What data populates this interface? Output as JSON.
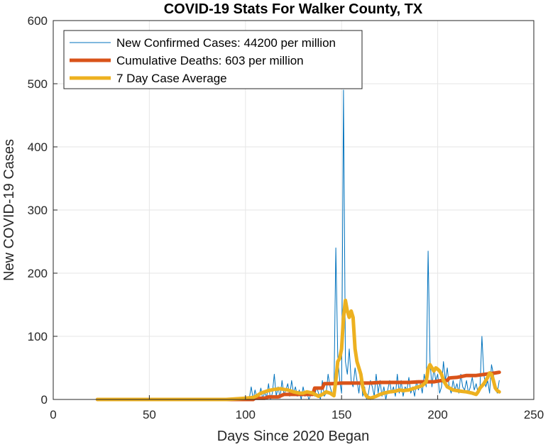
{
  "chart_data": {
    "type": "line",
    "title": "COVID-19 Stats For Walker County, TX",
    "xlabel": "Days Since 2020 Began",
    "ylabel": "New COVID-19 Cases",
    "xlim": [
      0,
      250
    ],
    "ylim": [
      0,
      600
    ],
    "xticks": [
      0,
      50,
      100,
      150,
      200,
      250
    ],
    "yticks": [
      0,
      100,
      200,
      300,
      400,
      500,
      600
    ],
    "grid": true,
    "legend_position": "top-left",
    "colors": {
      "new_cases": "#0072BD",
      "deaths": "#D95319",
      "average": "#EDB120",
      "grid": "#e6e6e6",
      "axis": "#262626"
    },
    "series": [
      {
        "name": "New Confirmed Cases: 44200 per million",
        "key": "new_cases",
        "width": 1,
        "x": [
          23,
          60,
          90,
          95,
          100,
          102,
          103,
          104,
          105,
          106,
          107,
          108,
          109,
          110,
          111,
          112,
          113,
          114,
          115,
          116,
          117,
          118,
          119,
          120,
          121,
          122,
          123,
          124,
          125,
          126,
          127,
          128,
          129,
          130,
          131,
          132,
          133,
          134,
          135,
          136,
          137,
          138,
          139,
          140,
          141,
          142,
          143,
          144,
          145,
          146,
          147,
          148,
          149,
          150,
          151,
          152,
          153,
          154,
          155,
          156,
          157,
          158,
          159,
          160,
          161,
          162,
          163,
          164,
          165,
          166,
          167,
          168,
          169,
          170,
          171,
          172,
          173,
          174,
          175,
          176,
          177,
          178,
          179,
          180,
          181,
          182,
          183,
          184,
          185,
          186,
          187,
          188,
          189,
          190,
          191,
          192,
          193,
          194,
          195,
          196,
          197,
          198,
          199,
          200,
          201,
          202,
          203,
          204,
          205,
          206,
          207,
          208,
          209,
          210,
          211,
          212,
          213,
          214,
          215,
          216,
          217,
          218,
          219,
          220,
          221,
          222,
          223,
          224,
          225,
          226,
          227,
          228,
          229,
          230,
          231,
          232
        ],
        "values": [
          0,
          0,
          0,
          0,
          0,
          2,
          20,
          0,
          15,
          2,
          5,
          18,
          0,
          12,
          3,
          25,
          0,
          10,
          40,
          5,
          20,
          2,
          30,
          8,
          15,
          25,
          5,
          30,
          10,
          20,
          5,
          15,
          0,
          20,
          5,
          10,
          0,
          8,
          15,
          5,
          20,
          10,
          0,
          30,
          5,
          10,
          40,
          20,
          10,
          5,
          240,
          70,
          30,
          10,
          490,
          60,
          40,
          80,
          30,
          20,
          50,
          30,
          10,
          40,
          5,
          20,
          0,
          10,
          30,
          20,
          5,
          40,
          10,
          30,
          5,
          20,
          0,
          15,
          30,
          10,
          20,
          5,
          40,
          10,
          30,
          5,
          20,
          15,
          35,
          10,
          20,
          5,
          30,
          15,
          25,
          10,
          40,
          20,
          235,
          60,
          20,
          50,
          30,
          40,
          10,
          20,
          60,
          30,
          50,
          20,
          10,
          30,
          15,
          25,
          10,
          40,
          20,
          15,
          30,
          10,
          20,
          35,
          15,
          25,
          10,
          20,
          100,
          40,
          20,
          30,
          10,
          55,
          40,
          20,
          10,
          30
        ],
        "style": "thin"
      },
      {
        "name": "Cumulative Deaths: 603 per million",
        "key": "deaths",
        "width": 5,
        "x": [
          23,
          104,
          105,
          110,
          112,
          117,
          120,
          125,
          135,
          136,
          140,
          141,
          145,
          150,
          155,
          160,
          165,
          170,
          180,
          185,
          190,
          195,
          198,
          200,
          202,
          205,
          206,
          210,
          215,
          220,
          225,
          230,
          232
        ],
        "values": [
          0,
          0,
          2,
          2,
          4,
          4,
          8,
          8,
          8,
          18,
          18,
          25,
          25,
          26,
          26,
          26,
          26,
          27,
          27,
          27,
          28,
          28,
          28,
          29,
          30,
          30,
          34,
          35,
          38,
          38,
          40,
          42,
          43
        ]
      },
      {
        "name": "7 Day Case Average",
        "key": "average",
        "width": 5,
        "x": [
          23,
          90,
          100,
          104,
          106,
          108,
          110,
          112,
          115,
          118,
          120,
          122,
          125,
          128,
          130,
          132,
          135,
          138,
          140,
          142,
          144,
          146,
          147,
          148,
          149,
          150,
          151,
          152,
          153,
          154,
          155,
          156,
          157,
          158,
          159,
          160,
          161,
          162,
          163,
          164,
          165,
          168,
          170,
          172,
          175,
          178,
          180,
          182,
          185,
          188,
          190,
          192,
          194,
          195,
          196,
          197,
          198,
          199,
          200,
          201,
          202,
          203,
          205,
          208,
          210,
          212,
          215,
          218,
          220,
          221,
          222,
          224,
          226,
          227,
          228,
          229,
          230,
          231,
          232
        ],
        "values": [
          0,
          0,
          2,
          3,
          6,
          10,
          12,
          14,
          16,
          17,
          16,
          15,
          12,
          10,
          10,
          12,
          10,
          5,
          8,
          12,
          10,
          6,
          30,
          60,
          65,
          80,
          130,
          157,
          140,
          130,
          140,
          130,
          80,
          60,
          50,
          40,
          20,
          10,
          5,
          3,
          2,
          5,
          8,
          10,
          12,
          13,
          15,
          14,
          15,
          18,
          20,
          22,
          28,
          48,
          55,
          50,
          45,
          50,
          48,
          45,
          40,
          30,
          20,
          15,
          14,
          13,
          12,
          10,
          8,
          12,
          18,
          25,
          35,
          42,
          40,
          30,
          18,
          14,
          12
        ]
      }
    ]
  }
}
